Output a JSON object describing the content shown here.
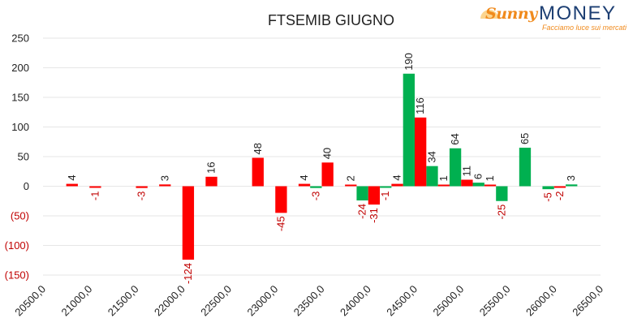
{
  "logo": {
    "brand_script": "Sunny",
    "brand_main": "MONEY",
    "tagline": "Facciamo luce sui mercati"
  },
  "colors": {
    "positive": "#00b050",
    "negative": "#ff0000",
    "negative_label": "#c00000",
    "grid": "#e6e6e6",
    "text": "#222222"
  },
  "chart_data": {
    "type": "bar",
    "title": "FTSEMIB GIUGNO",
    "xlabel": "",
    "ylabel": "",
    "ylim": [
      -150,
      250
    ],
    "yticks": [
      250,
      200,
      150,
      100,
      50,
      0,
      -50,
      -100,
      -150
    ],
    "ytick_labels": [
      "250",
      "200",
      "150",
      "100",
      "50",
      "0",
      "(50)",
      "(100)",
      "(150)"
    ],
    "xlim": [
      20500,
      26500
    ],
    "xticks": [
      20500,
      21000,
      21500,
      22000,
      22500,
      23000,
      23500,
      24000,
      24500,
      25000,
      25500,
      26000,
      26500
    ],
    "xtick_labels": [
      "20500,0",
      "21000,0",
      "21500,0",
      "22000,0",
      "22500,0",
      "23000,0",
      "23500,0",
      "24000,0",
      "24500,0",
      "25000,0",
      "25500,0",
      "26000,0",
      "26500,0"
    ],
    "grid": true,
    "bar_width": 125,
    "series": [
      {
        "color": "#00b050",
        "offset": -62.5,
        "points": [
          {
            "x": 23500,
            "y": -3,
            "label": "-3"
          },
          {
            "x": 24000,
            "y": -24,
            "label": "-24"
          },
          {
            "x": 24250,
            "y": -1,
            "label": "-1"
          },
          {
            "x": 24500,
            "y": 190,
            "label": "190"
          },
          {
            "x": 24750,
            "y": 34,
            "label": "34"
          },
          {
            "x": 25000,
            "y": 64,
            "label": "64"
          },
          {
            "x": 25250,
            "y": 6,
            "label": "6"
          },
          {
            "x": 25500,
            "y": -25,
            "label": "-25"
          },
          {
            "x": 25750,
            "y": 65,
            "label": "65"
          },
          {
            "x": 26000,
            "y": -5,
            "label": "-5"
          },
          {
            "x": 26250,
            "y": 3,
            "label": "3"
          }
        ]
      },
      {
        "color": "#ff0000",
        "offset": 62.5,
        "points": [
          {
            "x": 20750,
            "y": 4,
            "label": "4"
          },
          {
            "x": 21000,
            "y": -1,
            "label": "-1"
          },
          {
            "x": 21500,
            "y": -3,
            "label": "-3"
          },
          {
            "x": 21750,
            "y": 3,
            "label": "3"
          },
          {
            "x": 22000,
            "y": -124,
            "label": "-124"
          },
          {
            "x": 22250,
            "y": 16,
            "label": "16"
          },
          {
            "x": 22750,
            "y": 48,
            "label": "48"
          },
          {
            "x": 23000,
            "y": -45,
            "label": "-45"
          },
          {
            "x": 23250,
            "y": 4,
            "label": "4"
          },
          {
            "x": 23500,
            "y": 40,
            "label": "40"
          },
          {
            "x": 23750,
            "y": 2,
            "label": "2"
          },
          {
            "x": 24000,
            "y": -31,
            "label": "-31"
          },
          {
            "x": 24250,
            "y": 4,
            "label": "4"
          },
          {
            "x": 24500,
            "y": 116,
            "label": "116"
          },
          {
            "x": 24750,
            "y": 1,
            "label": "1"
          },
          {
            "x": 25000,
            "y": 11,
            "label": "11"
          },
          {
            "x": 25250,
            "y": 1,
            "label": "1"
          },
          {
            "x": 26000,
            "y": -2,
            "label": "-2"
          }
        ]
      }
    ]
  }
}
